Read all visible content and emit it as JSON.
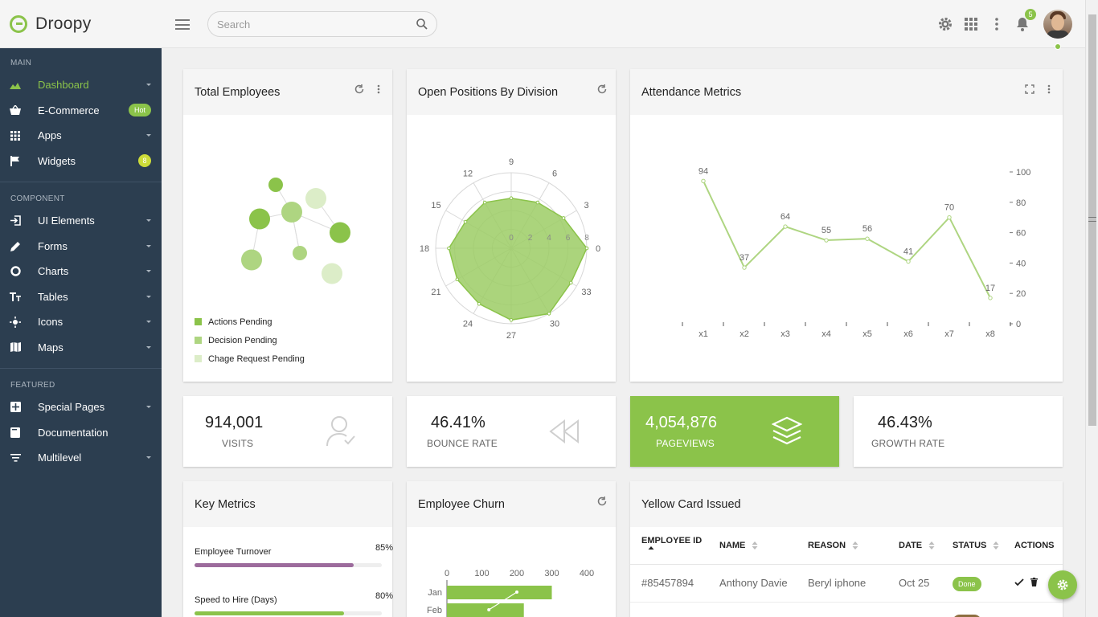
{
  "brand": {
    "name": "Droopy"
  },
  "search": {
    "placeholder": "Search"
  },
  "topbar": {
    "notifications": "5"
  },
  "sidebar": {
    "sections": [
      {
        "heading": "MAIN",
        "items": [
          {
            "label": "Dashboard",
            "icon": "chart-area-icon",
            "active": true
          },
          {
            "label": "E-Commerce",
            "icon": "basket-icon",
            "badge": "Hot"
          },
          {
            "label": "Apps",
            "icon": "grid-icon"
          },
          {
            "label": "Widgets",
            "icon": "flag-icon",
            "count": "8"
          }
        ]
      },
      {
        "heading": "COMPONENT",
        "items": [
          {
            "label": "UI Elements",
            "icon": "login-icon"
          },
          {
            "label": "Forms",
            "icon": "pencil-icon"
          },
          {
            "label": "Charts",
            "icon": "donut-icon"
          },
          {
            "label": "Tables",
            "icon": "text-size-icon"
          },
          {
            "label": "Icons",
            "icon": "sun-icon"
          },
          {
            "label": "Maps",
            "icon": "map-icon"
          }
        ]
      },
      {
        "heading": "FEATURED",
        "items": [
          {
            "label": "Special Pages",
            "icon": "pages-icon"
          },
          {
            "label": "Documentation",
            "icon": "book-icon"
          },
          {
            "label": "Multilevel",
            "icon": "filter-icon"
          }
        ]
      }
    ]
  },
  "cards": {
    "total_employees": {
      "title": "Total Employees",
      "legend": [
        {
          "label": "Actions Pending",
          "color": "#8bc34a"
        },
        {
          "label": "Decision Pending",
          "color": "#aed581"
        },
        {
          "label": "Chage Request Pending",
          "color": "#dcedc8"
        }
      ]
    },
    "open_positions": {
      "title": "Open Positions By Division"
    },
    "attendance": {
      "title": "Attendance Metrics"
    },
    "key_metrics": {
      "title": "Key Metrics",
      "items": [
        {
          "label": "Employee Turnover",
          "pct": "85%",
          "value": 0.85,
          "color": "#9c6b9c"
        },
        {
          "label": "Speed to Hire (Days)",
          "pct": "80%",
          "value": 0.8,
          "color": "#8bc34a"
        }
      ]
    },
    "churn": {
      "title": "Employee Churn"
    },
    "yellow_card": {
      "title": "Yellow Card Issued",
      "columns": [
        "EMPLOYEE ID",
        "NAME",
        "REASON",
        "DATE",
        "STATUS",
        "ACTIONS"
      ],
      "rows": [
        {
          "id": "#85457894",
          "name": "Anthony Davie",
          "reason": "Beryl iphone",
          "date": "Oct 25",
          "status": "Done"
        }
      ]
    }
  },
  "stats": [
    {
      "value": "914,001",
      "label": "VISITS"
    },
    {
      "value": "46.41%",
      "label": "BOUNCE RATE"
    },
    {
      "value": "4,054,876",
      "label": "PAGEVIEWS"
    },
    {
      "value": "46.43%",
      "label": "GROWTH RATE"
    }
  ],
  "chart_data": [
    {
      "type": "scatter",
      "title": "Total Employees",
      "series": [
        {
          "name": "Actions Pending",
          "points": [
            [
              0.35,
              0.2
            ],
            [
              0.25,
              0.45
            ],
            [
              0.75,
              0.55
            ]
          ]
        },
        {
          "name": "Decision Pending",
          "points": [
            [
              0.45,
              0.4
            ],
            [
              0.2,
              0.75
            ],
            [
              0.5,
              0.7
            ]
          ]
        },
        {
          "name": "Chage Request Pending",
          "points": [
            [
              0.6,
              0.3
            ],
            [
              0.7,
              0.85
            ]
          ]
        }
      ]
    },
    {
      "type": "radar",
      "title": "Open Positions By Division",
      "angle_labels": [
        "0",
        "3",
        "6",
        "9",
        "12",
        "15",
        "18",
        "21",
        "24",
        "27",
        "30",
        "33"
      ],
      "radial_ticks": [
        "0",
        "2",
        "4",
        "6",
        "8"
      ],
      "rmax": 8,
      "values": [
        8,
        6.4,
        5.6,
        5.3,
        5.6,
        5.6,
        6.6,
        6.6,
        6.8,
        7.6,
        8,
        7.3
      ]
    },
    {
      "type": "line",
      "title": "Attendance Metrics",
      "categories": [
        "x1",
        "x2",
        "x3",
        "x4",
        "x5",
        "x6",
        "x7",
        "x8"
      ],
      "values": [
        94,
        37,
        64,
        55,
        56,
        41,
        70,
        17
      ],
      "ylim": [
        0,
        100
      ],
      "yticks": [
        0,
        20,
        40,
        60,
        80,
        100
      ],
      "y_axis_side": "right"
    },
    {
      "type": "bar",
      "title": "Employee Churn",
      "orientation": "horizontal",
      "categories": [
        "Jan",
        "Feb"
      ],
      "values": [
        300,
        220
      ],
      "line_values": [
        200,
        120
      ],
      "xlim": [
        0,
        400
      ],
      "xticks": [
        0,
        100,
        200,
        300,
        400
      ]
    }
  ]
}
